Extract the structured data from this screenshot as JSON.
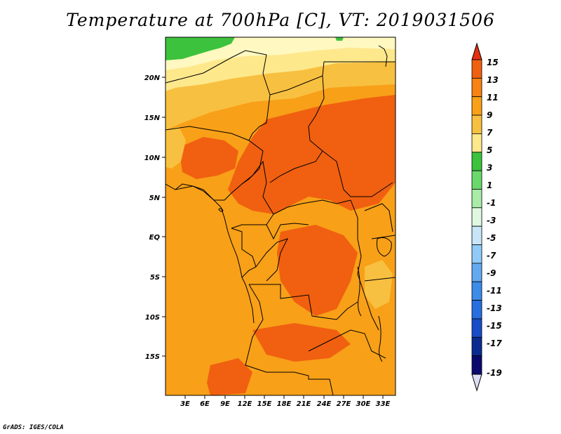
{
  "title": "Temperature at 700hPa [C], VT: 2019031506",
  "credit": "GrADS: IGES/COLA",
  "map": {
    "variable": "Temperature at 700hPa",
    "units": "C",
    "valid_time": "2019031506",
    "lat_ticks": [
      "20N",
      "15N",
      "10N",
      "5N",
      "EQ",
      "5S",
      "10S",
      "15S"
    ],
    "lon_ticks": [
      "3E",
      "6E",
      "9E",
      "12E",
      "15E",
      "18E",
      "21E",
      "24E",
      "27E",
      "30E",
      "33E"
    ],
    "region_colors": {
      "warmest": "#f06010",
      "warm": "#f8a018",
      "mild": "#f8c040",
      "cool": "#fee88c",
      "pale": "#fff8c0",
      "green": "#3cc23c"
    }
  },
  "colorbar": {
    "labels": [
      "15",
      "13",
      "11",
      "9",
      "7",
      "5",
      "3",
      "1",
      "-1",
      "-3",
      "-5",
      "-7",
      "-9",
      "-11",
      "-13",
      "-15",
      "-17",
      "-19"
    ],
    "colors": [
      "#e63010",
      "#f06010",
      "#f88214",
      "#f8a018",
      "#f8c040",
      "#fee88c",
      "#3cc23c",
      "#6ad86a",
      "#a8eca8",
      "#e0f8e0",
      "#c8e6f8",
      "#90caf8",
      "#64a8f0",
      "#3c8ce8",
      "#286ee0",
      "#1a4cc8",
      "#0a2c90",
      "#0a0a6e",
      "#dcdcf4"
    ]
  }
}
